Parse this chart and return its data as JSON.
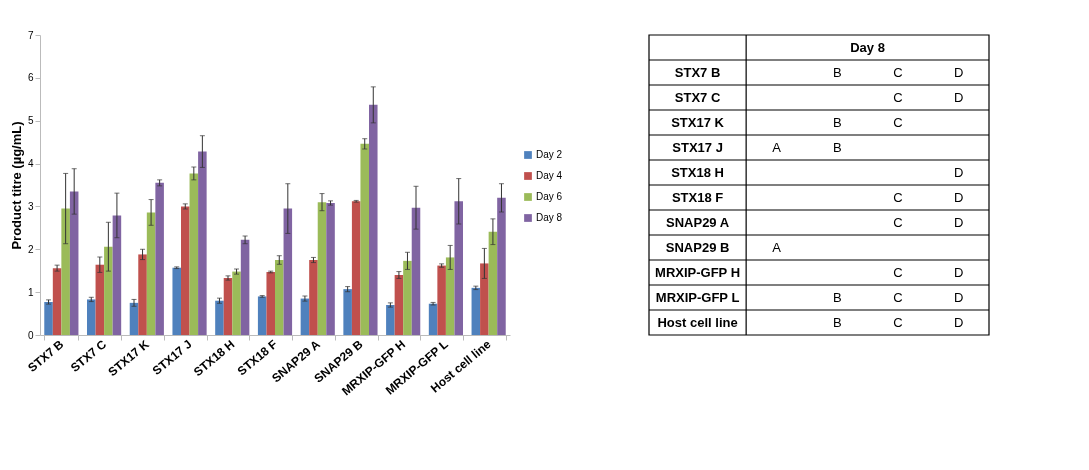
{
  "chart_data": [
    {
      "type": "bar",
      "ylabel": "Product titre (µg/mL)",
      "categories": [
        "STX7 B",
        "STX7 C",
        "STX17 K",
        "STX17 J",
        "STX18 H",
        "STX18 F",
        "SNAP29 A",
        "SNAP29 B",
        "MRXIP-GFP H",
        "MRXIP-GFP L",
        "Host cell line"
      ],
      "ylim": [
        0,
        7
      ],
      "yticks": [
        0,
        1,
        2,
        3,
        4,
        5,
        6,
        7
      ],
      "grid": false,
      "legend": "right",
      "series": [
        {
          "name": "Day 2",
          "color": "#4f81bd",
          "values": [
            0.77,
            0.83,
            0.75,
            1.57,
            0.8,
            0.9,
            0.85,
            1.07,
            0.7,
            0.73,
            1.1
          ],
          "errors": [
            0.05,
            0.05,
            0.08,
            0.02,
            0.06,
            0.02,
            0.06,
            0.06,
            0.05,
            0.03,
            0.04
          ]
        },
        {
          "name": "Day 4",
          "color": "#c0504d",
          "values": [
            1.56,
            1.64,
            1.88,
            3.0,
            1.33,
            1.47,
            1.75,
            3.12,
            1.4,
            1.62,
            1.67
          ],
          "errors": [
            0.07,
            0.18,
            0.12,
            0.06,
            0.05,
            0.02,
            0.06,
            0.02,
            0.08,
            0.04,
            0.35
          ]
        },
        {
          "name": "Day 6",
          "color": "#9bbb59",
          "values": [
            2.95,
            2.06,
            2.86,
            3.77,
            1.48,
            1.75,
            3.1,
            4.46,
            1.73,
            1.81,
            2.41
          ],
          "errors": [
            0.82,
            0.57,
            0.3,
            0.15,
            0.06,
            0.1,
            0.2,
            0.12,
            0.2,
            0.28,
            0.3
          ]
        },
        {
          "name": "Day 8",
          "color": "#8064a2",
          "values": [
            3.35,
            2.79,
            3.55,
            4.28,
            2.22,
            2.95,
            3.08,
            5.37,
            2.97,
            3.12,
            3.2
          ],
          "errors": [
            0.53,
            0.52,
            0.07,
            0.37,
            0.09,
            0.58,
            0.05,
            0.42,
            0.5,
            0.53,
            0.33
          ]
        }
      ]
    },
    {
      "type": "other",
      "title": "Day 8",
      "y_categories": [
        "STX7 B",
        "STX7 C",
        "STX17 K",
        "STX17 J",
        "STX18 H",
        "STX18 F",
        "SNAP29 A",
        "SNAP29 B",
        "MRXIP-GFP H",
        "MRXIP-GFP L",
        "Host cell line"
      ],
      "cell_labels": [
        [
          null,
          "B",
          "C",
          "D"
        ],
        [
          null,
          null,
          "C",
          "D"
        ],
        [
          null,
          "B",
          "C",
          null
        ],
        [
          "A",
          "B",
          null,
          null
        ],
        [
          null,
          null,
          null,
          "D"
        ],
        [
          null,
          null,
          "C",
          "D"
        ],
        [
          null,
          null,
          "C",
          "D"
        ],
        [
          "A",
          null,
          null,
          null
        ],
        [
          null,
          null,
          "C",
          "D"
        ],
        [
          null,
          "B",
          "C",
          "D"
        ],
        [
          null,
          "B",
          "C",
          "D"
        ]
      ]
    }
  ]
}
